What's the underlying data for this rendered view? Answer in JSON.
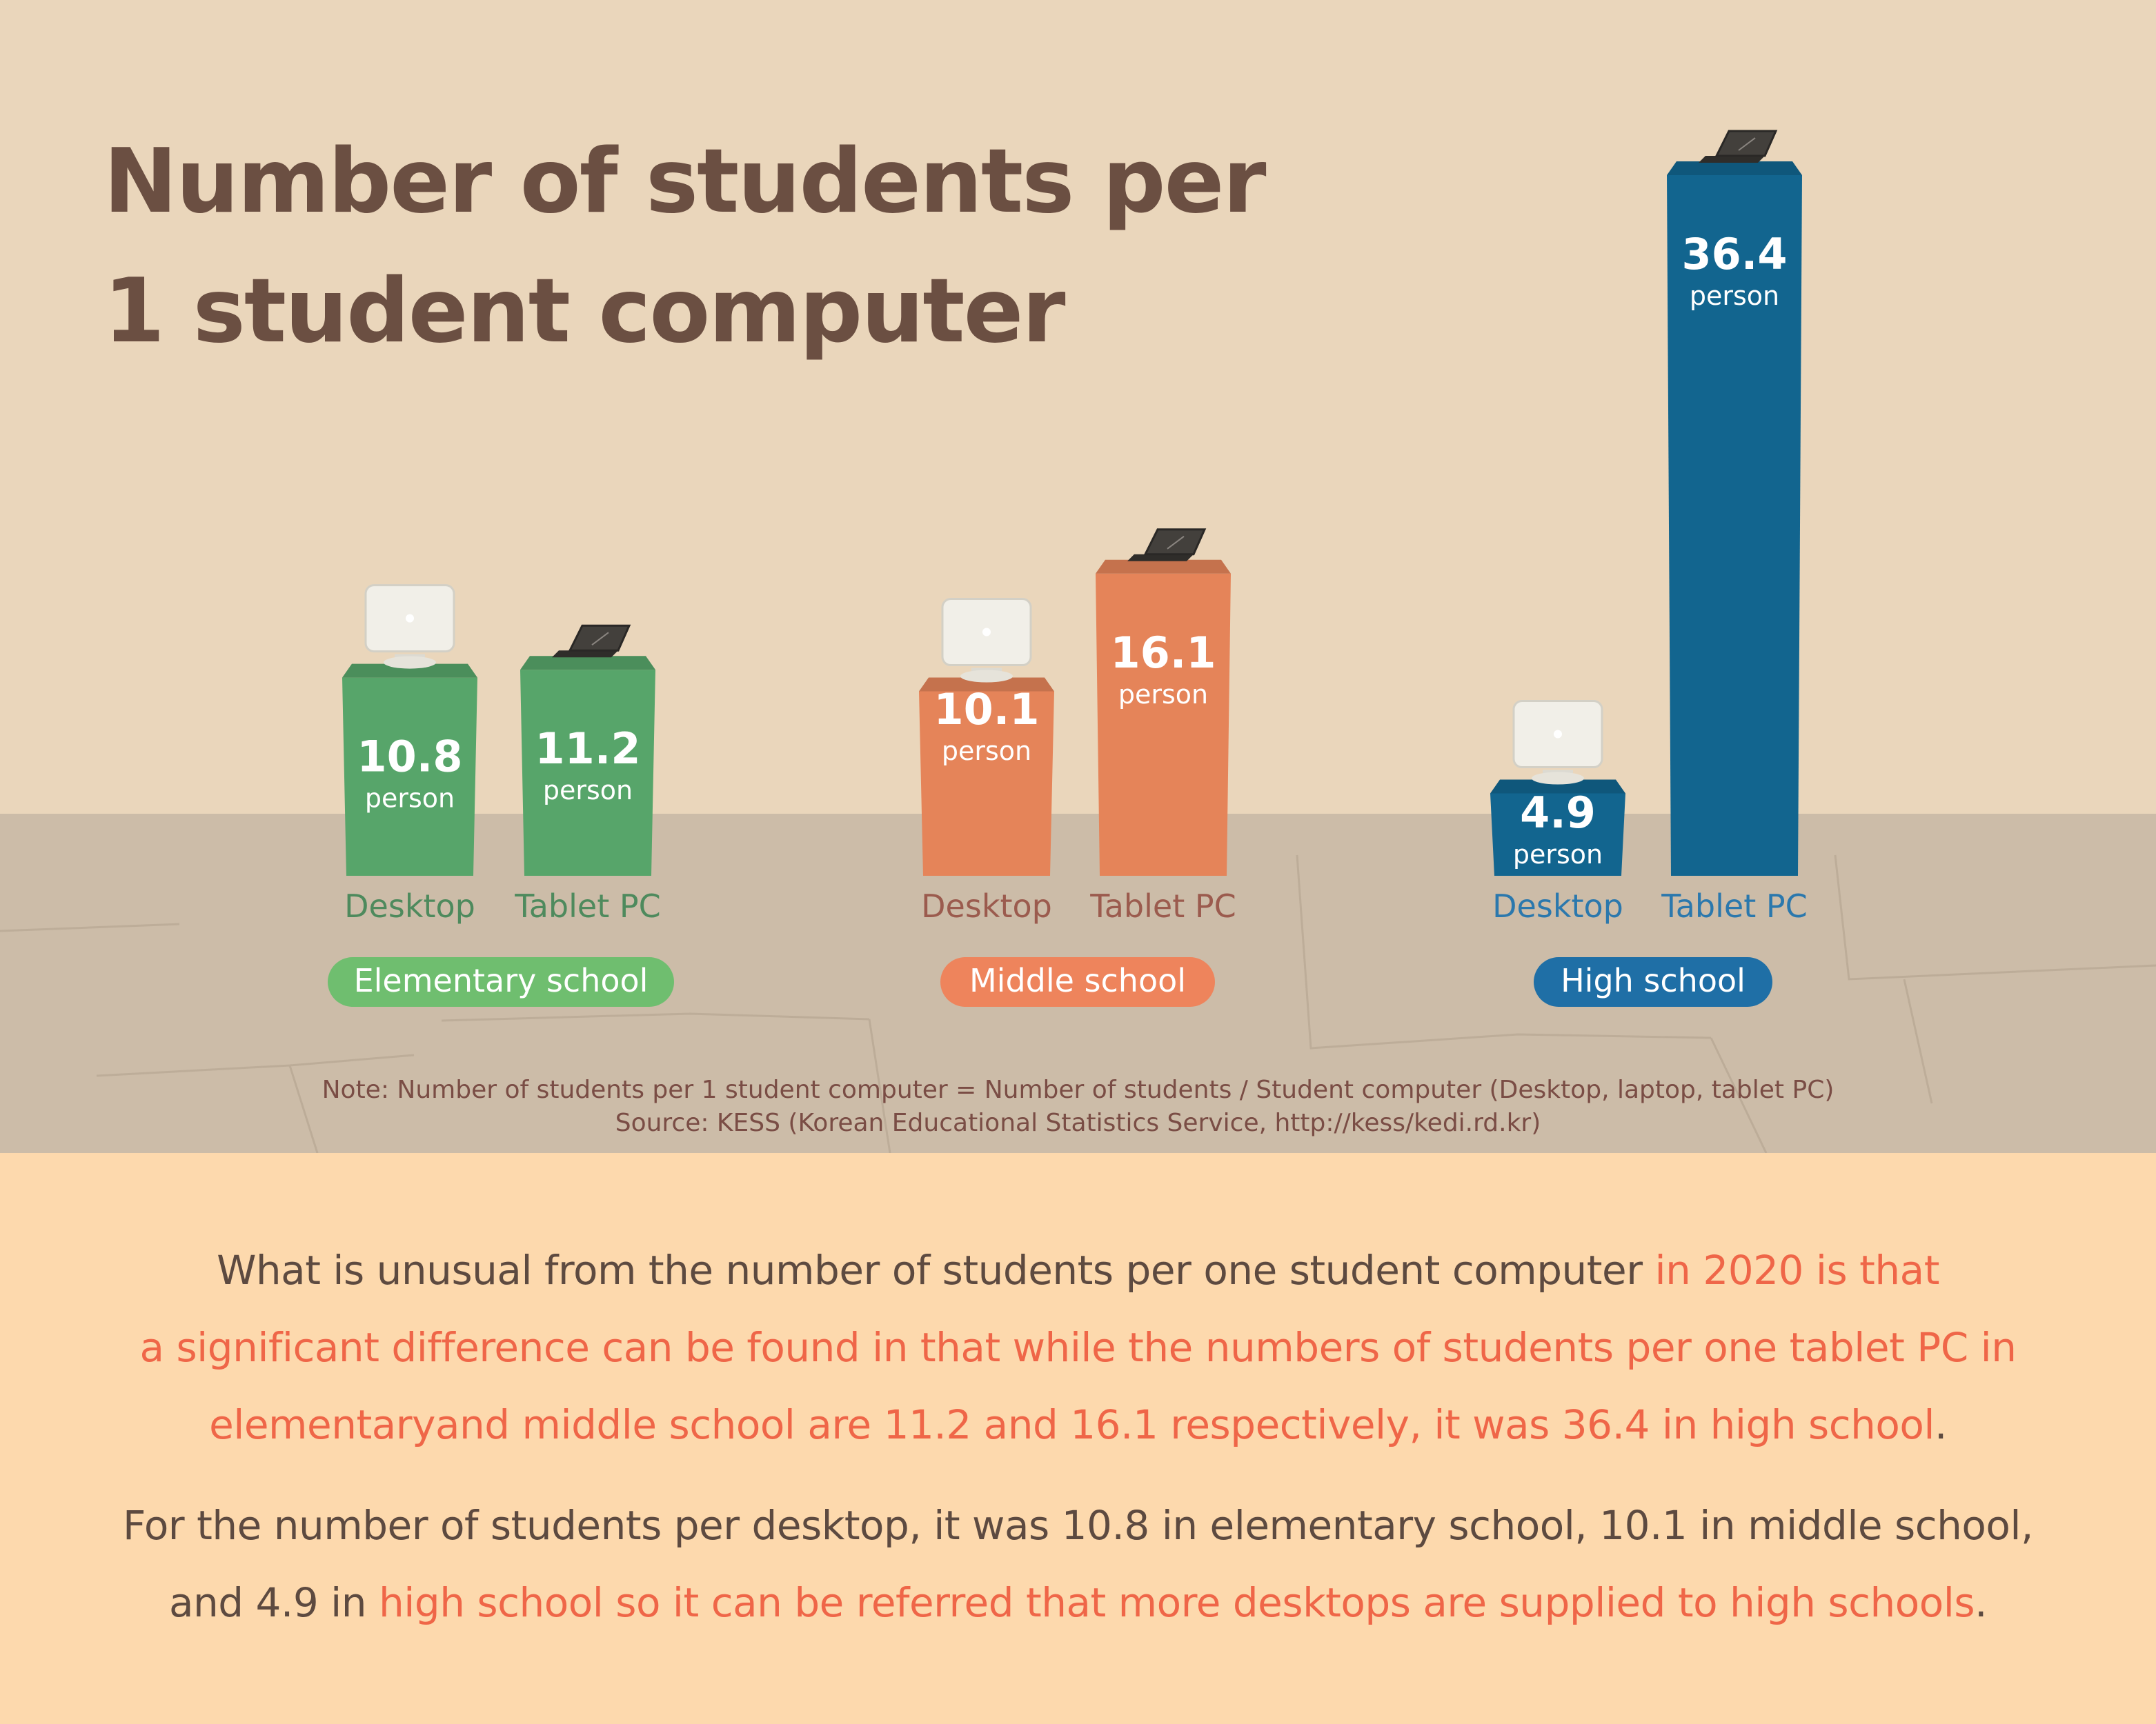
{
  "title": {
    "line1": "Number of students per",
    "line2": "1 student computer"
  },
  "chart_data": {
    "type": "bar",
    "unit_label": "person",
    "groups": [
      {
        "name": "Elementary school",
        "color": "#57a56a",
        "pill_color": "#6fbe6f",
        "label_color": "#4e8a5d",
        "bars": [
          {
            "category": "Desktop",
            "value": 10.8,
            "device": "desktop"
          },
          {
            "category": "Tablet PC",
            "value": 11.2,
            "device": "tablet"
          }
        ]
      },
      {
        "name": "Middle school",
        "color": "#e58459",
        "pill_color": "#ee845c",
        "label_color": "#9b5b4e",
        "bars": [
          {
            "category": "Desktop",
            "value": 10.1,
            "device": "desktop"
          },
          {
            "category": "Tablet PC",
            "value": 16.1,
            "device": "tablet"
          }
        ]
      },
      {
        "name": "High school",
        "color": "#12658f",
        "pill_color": "#1f6fa6",
        "label_color": "#2b78ad",
        "bars": [
          {
            "category": "Desktop",
            "value": 4.9,
            "device": "desktop"
          },
          {
            "category": "Tablet PC",
            "value": 36.4,
            "device": "tablet"
          }
        ]
      }
    ]
  },
  "notes": {
    "note": "Note: Number of students per 1 student computer = Number of students / Student computer (Desktop, laptop, tablet PC)",
    "source": "Source: KESS (Korean Educational Statistics Service, http://kess/kedi.rd.kr)"
  },
  "body": {
    "p1_l1_a": "What is unusual from the number of students per one student computer ",
    "p1_l1_b": "in 2020 is that",
    "p1_l2": "a significant difference can be found in that while the numbers of students per one tablet PC in",
    "p1_l3_a": "elementaryand middle school are 11.2 and 16.1 respectively, it was 36.4 in high school",
    "p1_l3_b": ".",
    "p2_l1": "For the number of students per desktop, it was 10.8 in elementary school, 10.1 in middle school,",
    "p2_l2_a": "and 4.9 in ",
    "p2_l2_b": "high school so it can be referred that more desktops are supplied to high schools",
    "p2_l2_c": "."
  },
  "colors": {
    "title": "#6b4f42",
    "highlight": "#ef6648",
    "body_text": "#5d4a40",
    "note_text": "#7a4d45"
  }
}
